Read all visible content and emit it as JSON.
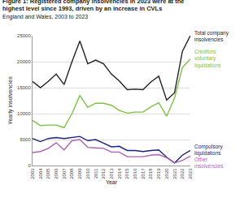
{
  "chart_data": {
    "type": "line",
    "title": "Figure 1: Registered company insolvencies in 2023 were at the highest level since 1993, driven by an increase in CVLs",
    "subtitle": "England and Wales, 2003 to 2023",
    "x_label": "Year",
    "y_label": "Yearly insolvencies",
    "x": [
      2003,
      2004,
      2005,
      2006,
      2007,
      2008,
      2009,
      2010,
      2011,
      2012,
      2013,
      2014,
      2015,
      2016,
      2017,
      2018,
      2019,
      2020,
      2021,
      2022,
      2023
    ],
    "series": [
      {
        "name": "Total company insolvencies",
        "color": "#222222",
        "values": [
          16200,
          15000,
          16200,
          17600,
          15600,
          20000,
          24000,
          19600,
          20300,
          19600,
          17600,
          16300,
          14600,
          14700,
          14600,
          16100,
          17200,
          12600,
          14000,
          22000,
          25000
        ]
      },
      {
        "name": "Creditors' voluntary liquidations",
        "color": "#7dc242",
        "values": [
          8700,
          7700,
          7800,
          7800,
          7300,
          10000,
          13500,
          11200,
          12000,
          12000,
          11600,
          10600,
          10100,
          10300,
          10300,
          11300,
          12100,
          9500,
          13000,
          18900,
          20500
        ]
      },
      {
        "name": "Compulsory liquidations",
        "color": "#1a237e",
        "values": [
          5200,
          4600,
          5200,
          5400,
          5200,
          5400,
          5600,
          4800,
          5000,
          4300,
          3600,
          3700,
          2900,
          2900,
          2700,
          2900,
          3000,
          1600,
          500,
          2000,
          2900
        ]
      },
      {
        "name": "Other insolvencies",
        "color": "#b05fb5",
        "values": [
          2500,
          2700,
          3300,
          4400,
          3000,
          4800,
          5000,
          3500,
          3400,
          3300,
          2600,
          2600,
          1700,
          1700,
          1700,
          2000,
          2100,
          1500,
          500,
          1000,
          1800
        ]
      }
    ],
    "xlim": [
      2003,
      2023
    ],
    "xticks": [
      2003,
      2004,
      2005,
      2006,
      2007,
      2008,
      2009,
      2010,
      2011,
      2012,
      2013,
      2014,
      2015,
      2016,
      2017,
      2018,
      2019,
      2020,
      2021,
      2022,
      2023
    ],
    "ylim": [
      0,
      25000
    ],
    "yticks": [
      0,
      5000,
      10000,
      15000,
      20000,
      25000
    ],
    "grid": true
  }
}
